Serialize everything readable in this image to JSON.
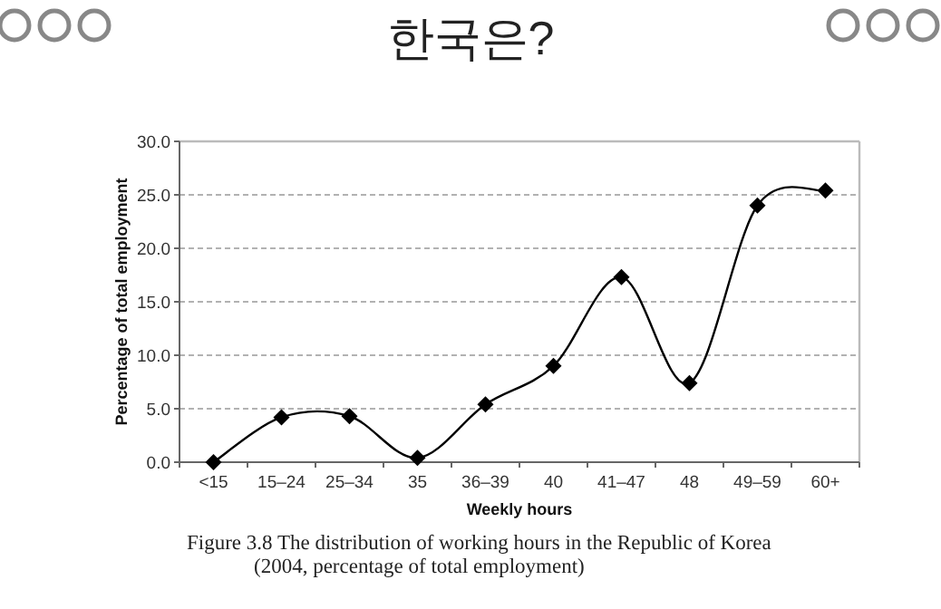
{
  "chart_data": {
    "type": "line",
    "title": "한국은?",
    "xlabel": "Weekly hours",
    "ylabel": "Percentage of total employment",
    "categories": [
      "<15",
      "15–24",
      "25–34",
      "35",
      "36–39",
      "40",
      "41–47",
      "48",
      "49–59",
      "60+"
    ],
    "series": [
      {
        "color": "#000000",
        "values": [
          0.0,
          4.2,
          4.3,
          0.4,
          5.4,
          9.0,
          17.3,
          7.4,
          24.0,
          25.4
        ]
      }
    ],
    "ylim": [
      0,
      30
    ],
    "yticks": [
      {
        "value": 0,
        "label": "0.0"
      },
      {
        "value": 5,
        "label": "5.0"
      },
      {
        "value": 10,
        "label": "10.0"
      },
      {
        "value": 15,
        "label": "15.0"
      },
      {
        "value": 20,
        "label": "20.0"
      },
      {
        "value": 25,
        "label": "25.0"
      },
      {
        "value": 30,
        "label": "30.0"
      }
    ],
    "grid": "y",
    "marker": "diamond",
    "line_style": "solid",
    "annotations": [
      "Figure 3.8  The distribution of working hours in the Republic of Korea (2004, percentage of total employment)"
    ]
  }
}
